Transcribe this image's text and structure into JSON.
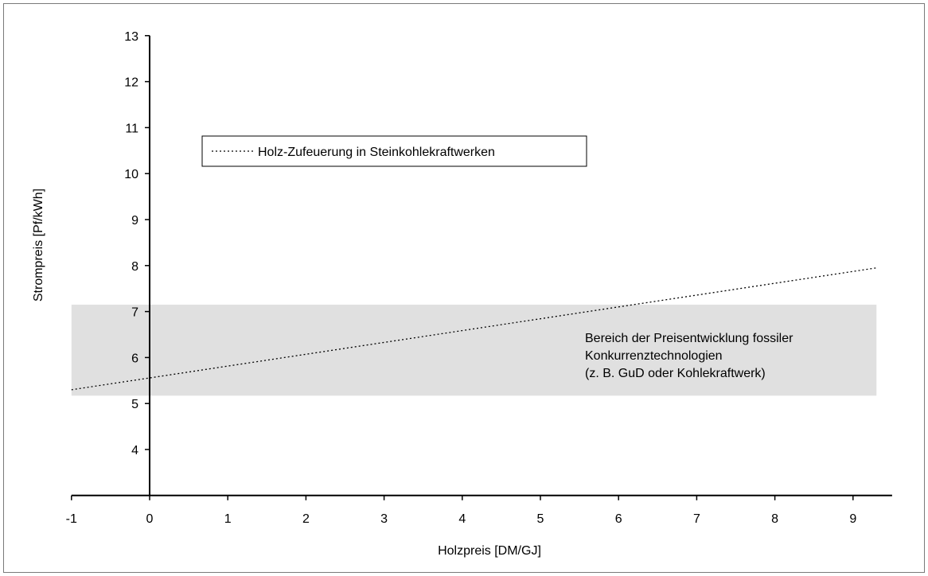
{
  "chart_data": {
    "type": "line",
    "title": "",
    "xlabel": "Holzpreis [DM/GJ]",
    "ylabel": "Strompreis [Pf/kWh]",
    "xlim": [
      -1,
      9.5
    ],
    "ylim": [
      3,
      13
    ],
    "x_axis_crosses_y_at": 3,
    "y_axis_crosses_x_at": 0,
    "x_ticks": [
      -1,
      0,
      1,
      2,
      3,
      4,
      5,
      6,
      7,
      8,
      9
    ],
    "y_ticks": [
      4,
      5,
      6,
      7,
      8,
      9,
      10,
      11,
      12,
      13
    ],
    "grid": false,
    "legend_position": "top-left",
    "series": [
      {
        "name": "Holz-Zufeuerung in Steinkohlekraftwerken",
        "style": "dotted",
        "color": "#000000",
        "x": [
          -1,
          9.3
        ],
        "y": [
          5.3,
          7.95
        ]
      }
    ],
    "bands": [
      {
        "y_range": [
          5.17,
          7.15
        ],
        "x_range": [
          -1,
          9.3
        ],
        "color": "#e0e0e0",
        "label_lines": [
          "Bereich der Preisentwicklung fossiler",
          "Konkurrenztechnologien",
          "(z. B. GuD oder Kohlekraftwerk)"
        ]
      }
    ]
  }
}
